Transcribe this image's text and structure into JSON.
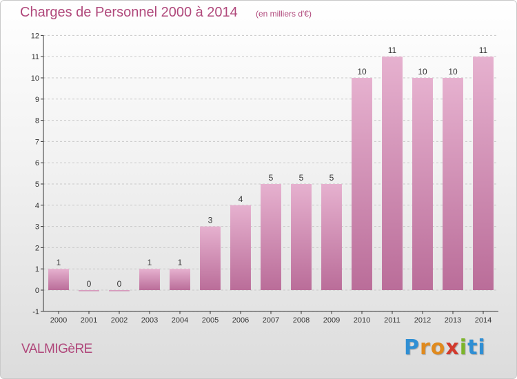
{
  "title": "Charges de Personnel 2000 à 2014",
  "subtitle": "(en milliers d'€)",
  "commune": "VALMIGèRE",
  "brand": [
    "P",
    "r",
    "o",
    "x",
    "i",
    "t",
    "i"
  ],
  "colors": {
    "bar": "#d88fb8",
    "bar_light": "#e6b1cf",
    "bar_dark": "#ba6d99",
    "text": "#b0487b",
    "axis": "#333333",
    "grid": "#c8c8c8"
  },
  "chart_data": {
    "type": "bar",
    "categories": [
      "2000",
      "2001",
      "2002",
      "2003",
      "2004",
      "2005",
      "2006",
      "2007",
      "2008",
      "2009",
      "2010",
      "2011",
      "2012",
      "2013",
      "2014"
    ],
    "values": [
      1,
      0,
      0,
      1,
      1,
      3,
      4,
      5,
      5,
      5,
      10,
      11,
      10,
      10,
      11
    ],
    "data_labels": [
      "1",
      "0",
      "0",
      "1",
      "1",
      "3",
      "4",
      "5",
      "5",
      "5",
      "10",
      "11",
      "10",
      "10",
      "11"
    ],
    "ylim": [
      -1,
      12
    ],
    "yticks": [
      -1,
      0,
      1,
      2,
      3,
      4,
      5,
      6,
      7,
      8,
      9,
      10,
      11,
      12
    ],
    "grid": true,
    "legend": "none"
  }
}
